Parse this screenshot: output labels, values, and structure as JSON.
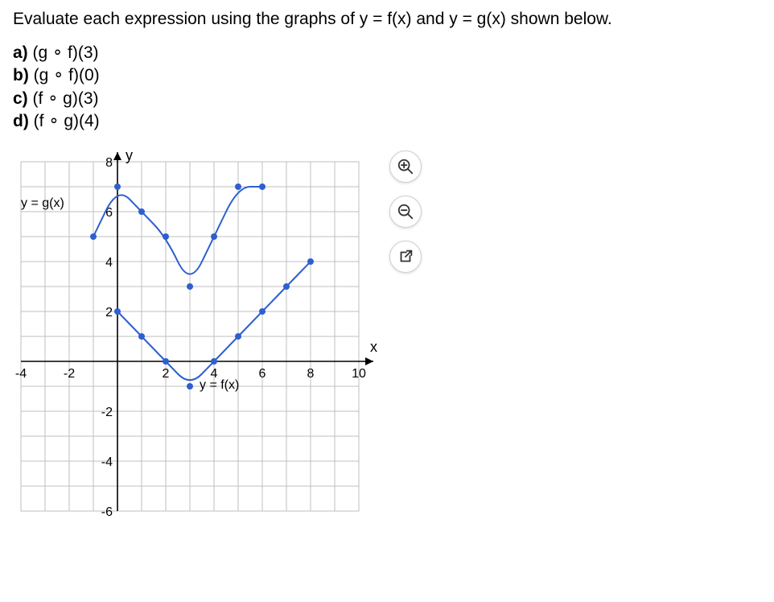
{
  "prompt": "Evaluate each expression using the graphs of y = f(x) and y = g(x) shown below.",
  "parts": [
    {
      "label": "a)",
      "expr": "(g ∘ f)(3)"
    },
    {
      "label": "b)",
      "expr": "(g ∘ f)(0)"
    },
    {
      "label": "c)",
      "expr": "(f ∘ g)(3)"
    },
    {
      "label": "d)",
      "expr": "(f ∘ g)(4)"
    }
  ],
  "chart": {
    "type": "line",
    "background": "#ffffff",
    "grid_color": "#bfbfbf",
    "axis_color": "#000000",
    "xlim": [
      -4,
      10
    ],
    "ylim": [
      -6,
      8
    ],
    "xtick_step": 2,
    "ytick_step": 2,
    "xlabel": "x",
    "ylabel": "y",
    "tick_fontsize": 16,
    "label_fontsize": 18,
    "series": [
      {
        "name": "f",
        "display": "y = f(x)",
        "label_pos": [
          3.4,
          -1.1
        ],
        "color": "#2e5fd1",
        "marker_color": "#2e5fd1",
        "line_width": 2,
        "marker_radius": 4,
        "points": [
          [
            0,
            2
          ],
          [
            1,
            1
          ],
          [
            2,
            0
          ],
          [
            3,
            -1
          ],
          [
            4,
            0
          ],
          [
            5,
            1
          ],
          [
            6,
            2
          ],
          [
            7,
            3
          ],
          [
            8,
            4
          ]
        ]
      },
      {
        "name": "g",
        "display": "y = g(x)",
        "label_pos": [
          -4.0,
          6.2
        ],
        "color": "#2e5fd1",
        "marker_color": "#2e5fd1",
        "line_width": 2,
        "marker_radius": 4,
        "points": [
          [
            -1,
            5
          ],
          [
            0,
            7
          ],
          [
            1,
            6
          ],
          [
            2,
            5
          ],
          [
            3,
            3
          ],
          [
            4,
            5
          ],
          [
            5,
            7
          ],
          [
            6,
            7
          ]
        ]
      }
    ]
  },
  "tools": {
    "zoom_in": "zoom-in",
    "zoom_out": "zoom-out",
    "open": "open-new-window"
  }
}
